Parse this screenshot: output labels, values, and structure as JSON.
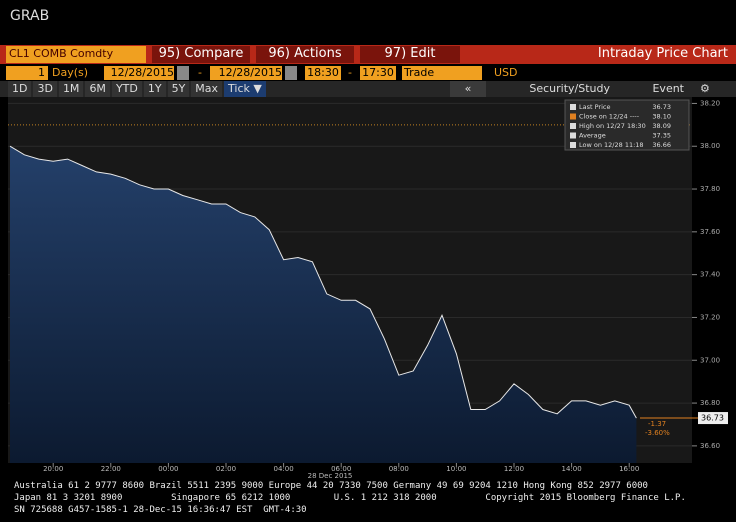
{
  "header": {
    "title": "GRAB"
  },
  "toolbar": {
    "security": "CL1 COMB Comdty",
    "compare": "95) Compare",
    "actions": "96) Actions",
    "edit": "97) Edit",
    "screen": "Intraday Price Chart"
  },
  "range": {
    "periods": "1",
    "unit": "Day(s)",
    "start_date": "12/28/2015",
    "date_sep": "-",
    "end_date": "12/28/2015",
    "start_time": "18:30",
    "time_sep": "-",
    "end_time": "17:30",
    "field": "Trade",
    "currency": "USD"
  },
  "buttons": [
    "1D",
    "3D",
    "1M",
    "6M",
    "YTD",
    "1Y",
    "5Y",
    "Max",
    "Tick ▼"
  ],
  "nav": "«",
  "study": "Security/Study",
  "event": "Event",
  "chart_data": {
    "type": "area",
    "color": "#e8e8e8",
    "x": [
      "18:30",
      "19:00",
      "19:30",
      "20:00",
      "20:30",
      "21:00",
      "21:30",
      "22:00",
      "22:30",
      "23:00",
      "23:30",
      "00:00",
      "00:30",
      "01:00",
      "01:30",
      "02:00",
      "02:30",
      "03:00",
      "03:30",
      "04:00",
      "04:30",
      "05:00",
      "05:30",
      "06:00",
      "06:30",
      "07:00",
      "07:30",
      "08:00",
      "08:30",
      "09:00",
      "09:30",
      "10:00",
      "10:30",
      "11:00",
      "11:30",
      "12:00",
      "12:30",
      "13:00",
      "13:30",
      "14:00",
      "14:30",
      "15:00",
      "15:30",
      "16:00",
      "16:15"
    ],
    "values": [
      38.0,
      37.96,
      37.94,
      37.93,
      37.94,
      37.91,
      37.88,
      37.87,
      37.85,
      37.82,
      37.8,
      37.8,
      37.77,
      37.75,
      37.73,
      37.73,
      37.69,
      37.67,
      37.61,
      37.47,
      37.48,
      37.46,
      37.31,
      37.28,
      37.28,
      37.24,
      37.1,
      36.93,
      36.95,
      37.07,
      37.21,
      37.03,
      36.77,
      36.77,
      36.81,
      36.89,
      36.84,
      36.77,
      36.75,
      36.81,
      36.81,
      36.79,
      36.81,
      36.79,
      36.73
    ],
    "xlim": [
      "18:30",
      "17:30"
    ],
    "xticks": [
      "20:00",
      "22:00",
      "00:00",
      "02:00",
      "04:00",
      "06:00",
      "08:00",
      "10:00",
      "12:00",
      "14:00",
      "16:00"
    ],
    "date_label": "28 Dec 2015",
    "ylim": [
      36.52,
      38.23
    ],
    "yticks": [
      {
        "value": 36.6,
        "label": "36.60"
      },
      {
        "value": 36.8,
        "label": "36.80"
      },
      {
        "value": 37.0,
        "label": "37.00"
      },
      {
        "value": 37.2,
        "label": "37.20"
      },
      {
        "value": 37.4,
        "label": "37.40"
      },
      {
        "value": 37.6,
        "label": "37.60"
      },
      {
        "value": 37.8,
        "label": "37.80"
      },
      {
        "value": 38.0,
        "label": "38.00"
      },
      {
        "value": 38.2,
        "label": "38.20"
      }
    ],
    "legend": [
      {
        "label": "Last Price",
        "value": "36.73"
      },
      {
        "label": "Close on 12/24 ----",
        "value": "38.10"
      },
      {
        "label": "High on 12/27 18:30",
        "value": "38.09"
      },
      {
        "label": "Average",
        "value": "37.35"
      },
      {
        "label": "Low on 12/28 11:18",
        "value": "36.66"
      }
    ],
    "last": {
      "value": "36.73",
      "change": "-1.37",
      "pct": "-3.60%"
    }
  },
  "footer": [
    "Australia 61 2 9777 8600 Brazil 5511 2395 9000 Europe 44 20 7330 7500 Germany 49 69 9204 1210 Hong Kong 852 2977 6000",
    "Japan 81 3 3201 8900         Singapore 65 6212 1000        U.S. 1 212 318 2000         Copyright 2015 Bloomberg Finance L.P.",
    "SN 725688 G457-1585-1 28-Dec-15 16:36:47 EST  GMT-4:30"
  ]
}
